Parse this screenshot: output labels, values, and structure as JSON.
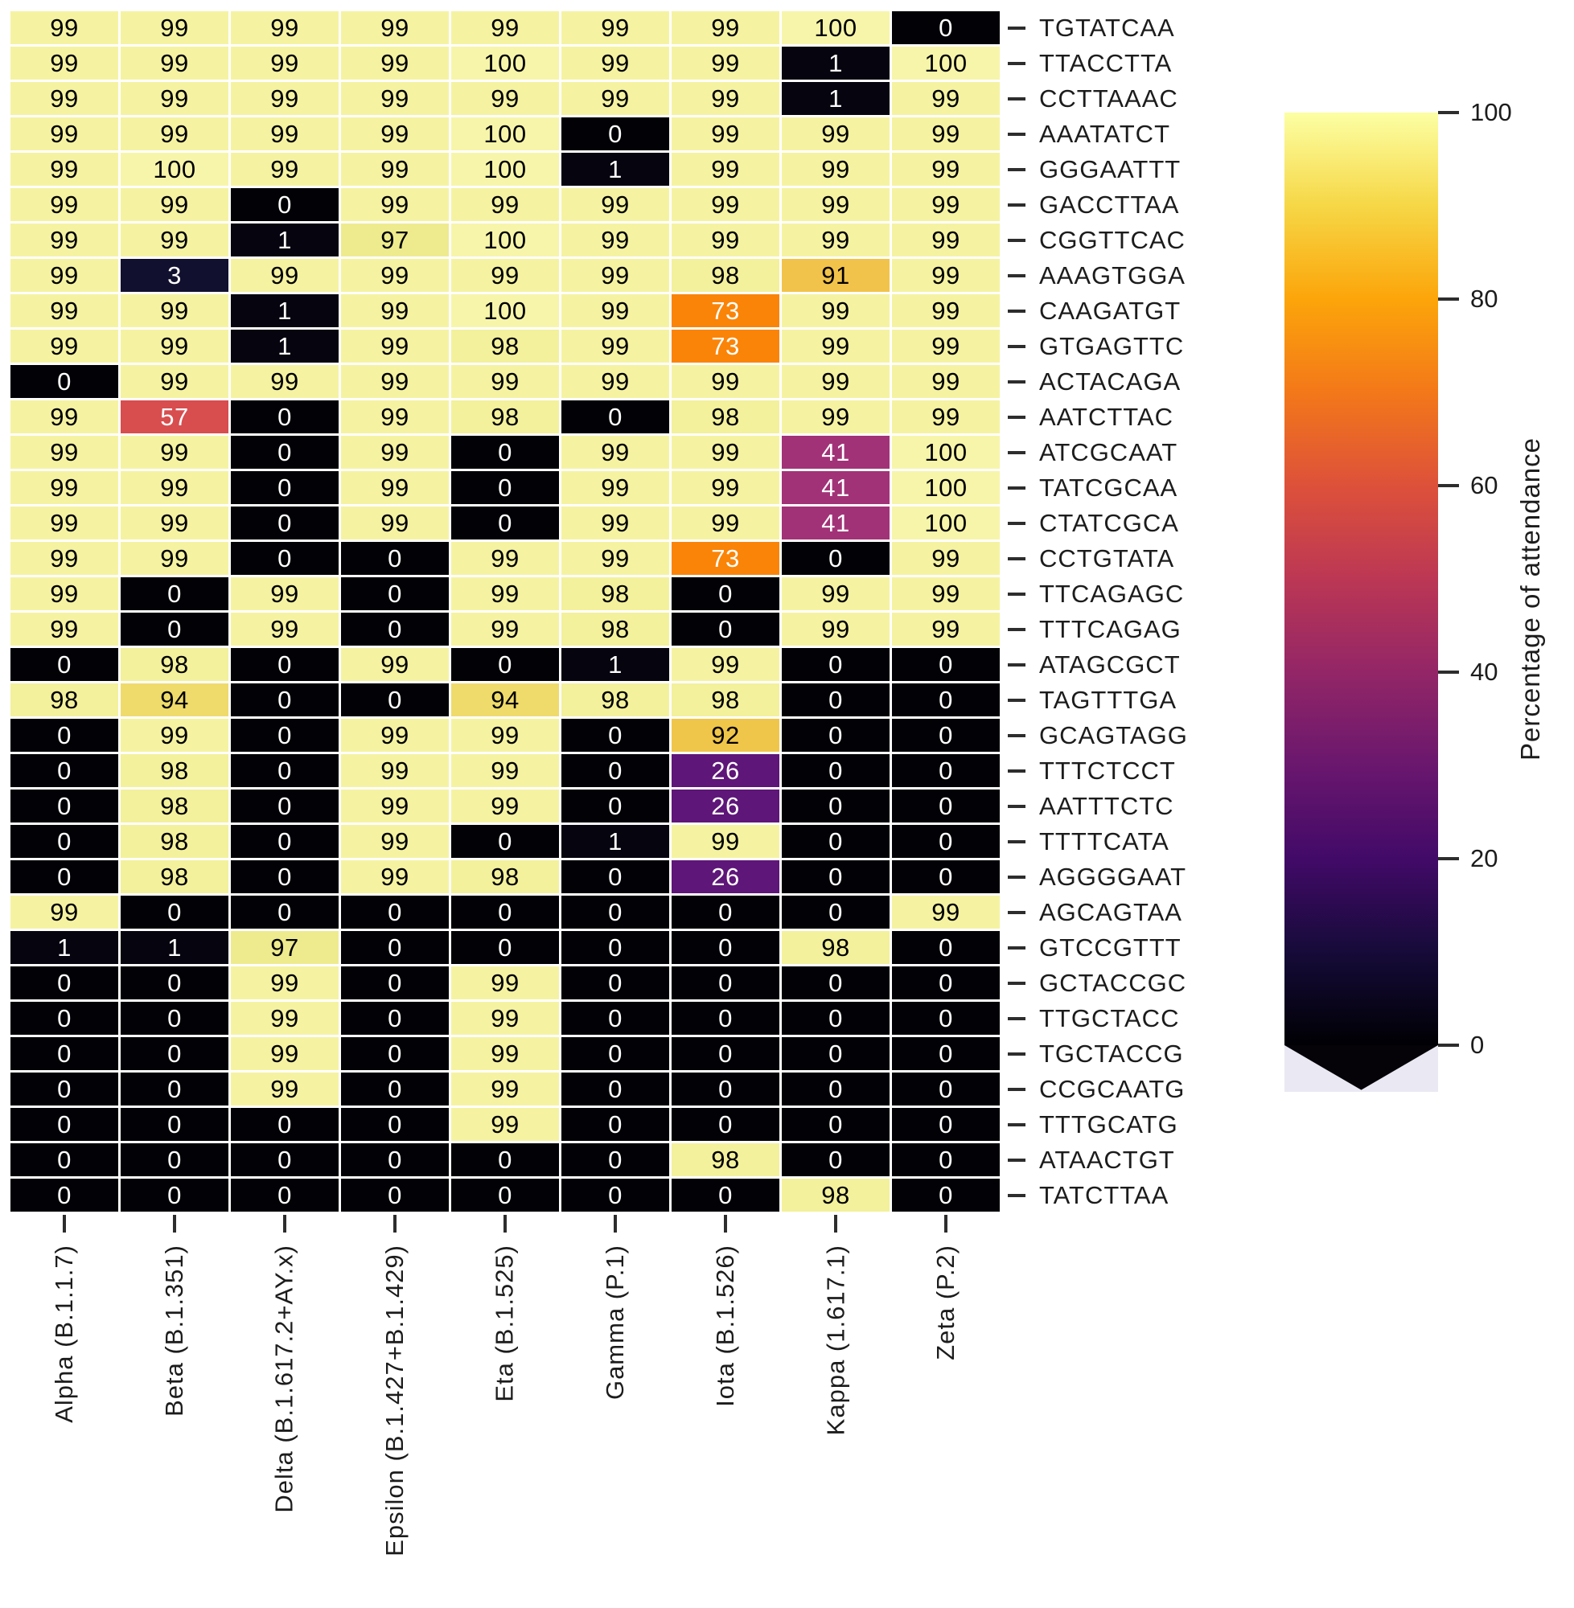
{
  "figure": {
    "background": "#ffffff"
  },
  "chart_data": {
    "type": "heatmap",
    "title": "",
    "xlabel": "",
    "ylabel": "",
    "colorbar_label": "Percentage of attendance",
    "colorbar_ticks": [
      100,
      80,
      60,
      40,
      20,
      0
    ],
    "vmin": 0,
    "vmax": 100,
    "colormap": "inferno",
    "legend_position": "right-colorbar",
    "grid": false,
    "x_categories": [
      "Alpha (B.1.1.7)",
      "Beta (B.1.351)",
      "Delta (B.1.617.2+AY.x)",
      "Epsilon (B.1.427+B.1.429)",
      "Eta (B.1.525)",
      "Gamma (P.1)",
      "Iota (B.1.526)",
      "Kappa (1.617.1)",
      "Zeta (P.2)"
    ],
    "y_categories": [
      "TGTATCAA",
      "TTACCTTA",
      "CCTTAAAC",
      "AAATATCT",
      "GGGAATTT",
      "GACCTTAA",
      "CGGTTCAC",
      "AAAGTGGA",
      "CAAGATGT",
      "GTGAGTTC",
      "ACTACAGA",
      "AATCTTAC",
      "ATCGCAAT",
      "TATCGCAA",
      "CTATCGCA",
      "CCTGTATA",
      "TTCAGAGC",
      "TTTCAGAG",
      "ATAGCGCT",
      "TAGTTTGA",
      "GCAGTAGG",
      "TTTCTCCT",
      "AATTTCTC",
      "TTTTCATA",
      "AGGGGAAT",
      "AGCAGTAA",
      "GTCCGTTT",
      "GCTACCGC",
      "TTGCTACC",
      "TGCTACCG",
      "CCGCAATG",
      "TTTGCATG",
      "ATAACTGT",
      "TATCTTAA"
    ],
    "values": [
      [
        99,
        99,
        99,
        99,
        99,
        99,
        99,
        100,
        0
      ],
      [
        99,
        99,
        99,
        99,
        100,
        99,
        99,
        1,
        100
      ],
      [
        99,
        99,
        99,
        99,
        99,
        99,
        99,
        1,
        99
      ],
      [
        99,
        99,
        99,
        99,
        100,
        0,
        99,
        99,
        99
      ],
      [
        99,
        100,
        99,
        99,
        100,
        1,
        99,
        99,
        99
      ],
      [
        99,
        99,
        0,
        99,
        99,
        99,
        99,
        99,
        99
      ],
      [
        99,
        99,
        1,
        97,
        100,
        99,
        99,
        99,
        99
      ],
      [
        99,
        3,
        99,
        99,
        99,
        99,
        98,
        91,
        99
      ],
      [
        99,
        99,
        1,
        99,
        100,
        99,
        73,
        99,
        99
      ],
      [
        99,
        99,
        1,
        99,
        98,
        99,
        73,
        99,
        99
      ],
      [
        0,
        99,
        99,
        99,
        99,
        99,
        99,
        99,
        99
      ],
      [
        99,
        57,
        0,
        99,
        98,
        0,
        98,
        99,
        99
      ],
      [
        99,
        99,
        0,
        99,
        0,
        99,
        99,
        41,
        100
      ],
      [
        99,
        99,
        0,
        99,
        0,
        99,
        99,
        41,
        100
      ],
      [
        99,
        99,
        0,
        99,
        0,
        99,
        99,
        41,
        100
      ],
      [
        99,
        99,
        0,
        0,
        99,
        99,
        73,
        0,
        99
      ],
      [
        99,
        0,
        99,
        0,
        99,
        98,
        0,
        99,
        99
      ],
      [
        99,
        0,
        99,
        0,
        99,
        98,
        0,
        99,
        99
      ],
      [
        0,
        98,
        0,
        99,
        0,
        1,
        99,
        0,
        0
      ],
      [
        98,
        94,
        0,
        0,
        94,
        98,
        98,
        0,
        0
      ],
      [
        0,
        99,
        0,
        99,
        99,
        0,
        92,
        0,
        0
      ],
      [
        0,
        98,
        0,
        99,
        99,
        0,
        26,
        0,
        0
      ],
      [
        0,
        98,
        0,
        99,
        99,
        0,
        26,
        0,
        0
      ],
      [
        0,
        98,
        0,
        99,
        0,
        1,
        99,
        0,
        0
      ],
      [
        0,
        98,
        0,
        99,
        98,
        0,
        26,
        0,
        0
      ],
      [
        99,
        0,
        0,
        0,
        0,
        0,
        0,
        0,
        99
      ],
      [
        1,
        1,
        97,
        0,
        0,
        0,
        0,
        98,
        0
      ],
      [
        0,
        0,
        99,
        0,
        99,
        0,
        0,
        0,
        0
      ],
      [
        0,
        0,
        99,
        0,
        99,
        0,
        0,
        0,
        0
      ],
      [
        0,
        0,
        99,
        0,
        99,
        0,
        0,
        0,
        0
      ],
      [
        0,
        0,
        99,
        0,
        99,
        0,
        0,
        0,
        0
      ],
      [
        0,
        0,
        0,
        0,
        99,
        0,
        0,
        0,
        0
      ],
      [
        0,
        0,
        0,
        0,
        0,
        0,
        98,
        0,
        0
      ],
      [
        0,
        0,
        0,
        0,
        0,
        0,
        0,
        98,
        0
      ]
    ],
    "value_colors": {
      "0": "#020106",
      "1": "#06040f",
      "3": "#12102f",
      "26": "#5e1678",
      "41": "#a23277",
      "57": "#d84d4e",
      "73": "#fa8408",
      "91": "#f2c34a",
      "92": "#f0c64a",
      "94": "#eedb6b",
      "97": "#eeeb8e",
      "98": "#f3f19c",
      "99": "#f5f3a2",
      "100": "#f7f5aa"
    },
    "cell_text_dark": "#000000",
    "cell_text_light": "#ffffff",
    "white_text_max": 73,
    "colorbar_gradient": [
      {
        "pos": 0,
        "color": "#000004"
      },
      {
        "pos": 10,
        "color": "#160b39"
      },
      {
        "pos": 20,
        "color": "#420a68"
      },
      {
        "pos": 30,
        "color": "#6a176e"
      },
      {
        "pos": 40,
        "color": "#932667"
      },
      {
        "pos": 50,
        "color": "#bc3754"
      },
      {
        "pos": 60,
        "color": "#dd513a"
      },
      {
        "pos": 70,
        "color": "#f37819"
      },
      {
        "pos": 80,
        "color": "#fca50a"
      },
      {
        "pos": 90,
        "color": "#f6d746"
      },
      {
        "pos": 100,
        "color": "#fcffa4"
      }
    ],
    "colorbar_extend_bg": "#eae8f2",
    "colorbar_extend_arrow_color": "#050208"
  }
}
